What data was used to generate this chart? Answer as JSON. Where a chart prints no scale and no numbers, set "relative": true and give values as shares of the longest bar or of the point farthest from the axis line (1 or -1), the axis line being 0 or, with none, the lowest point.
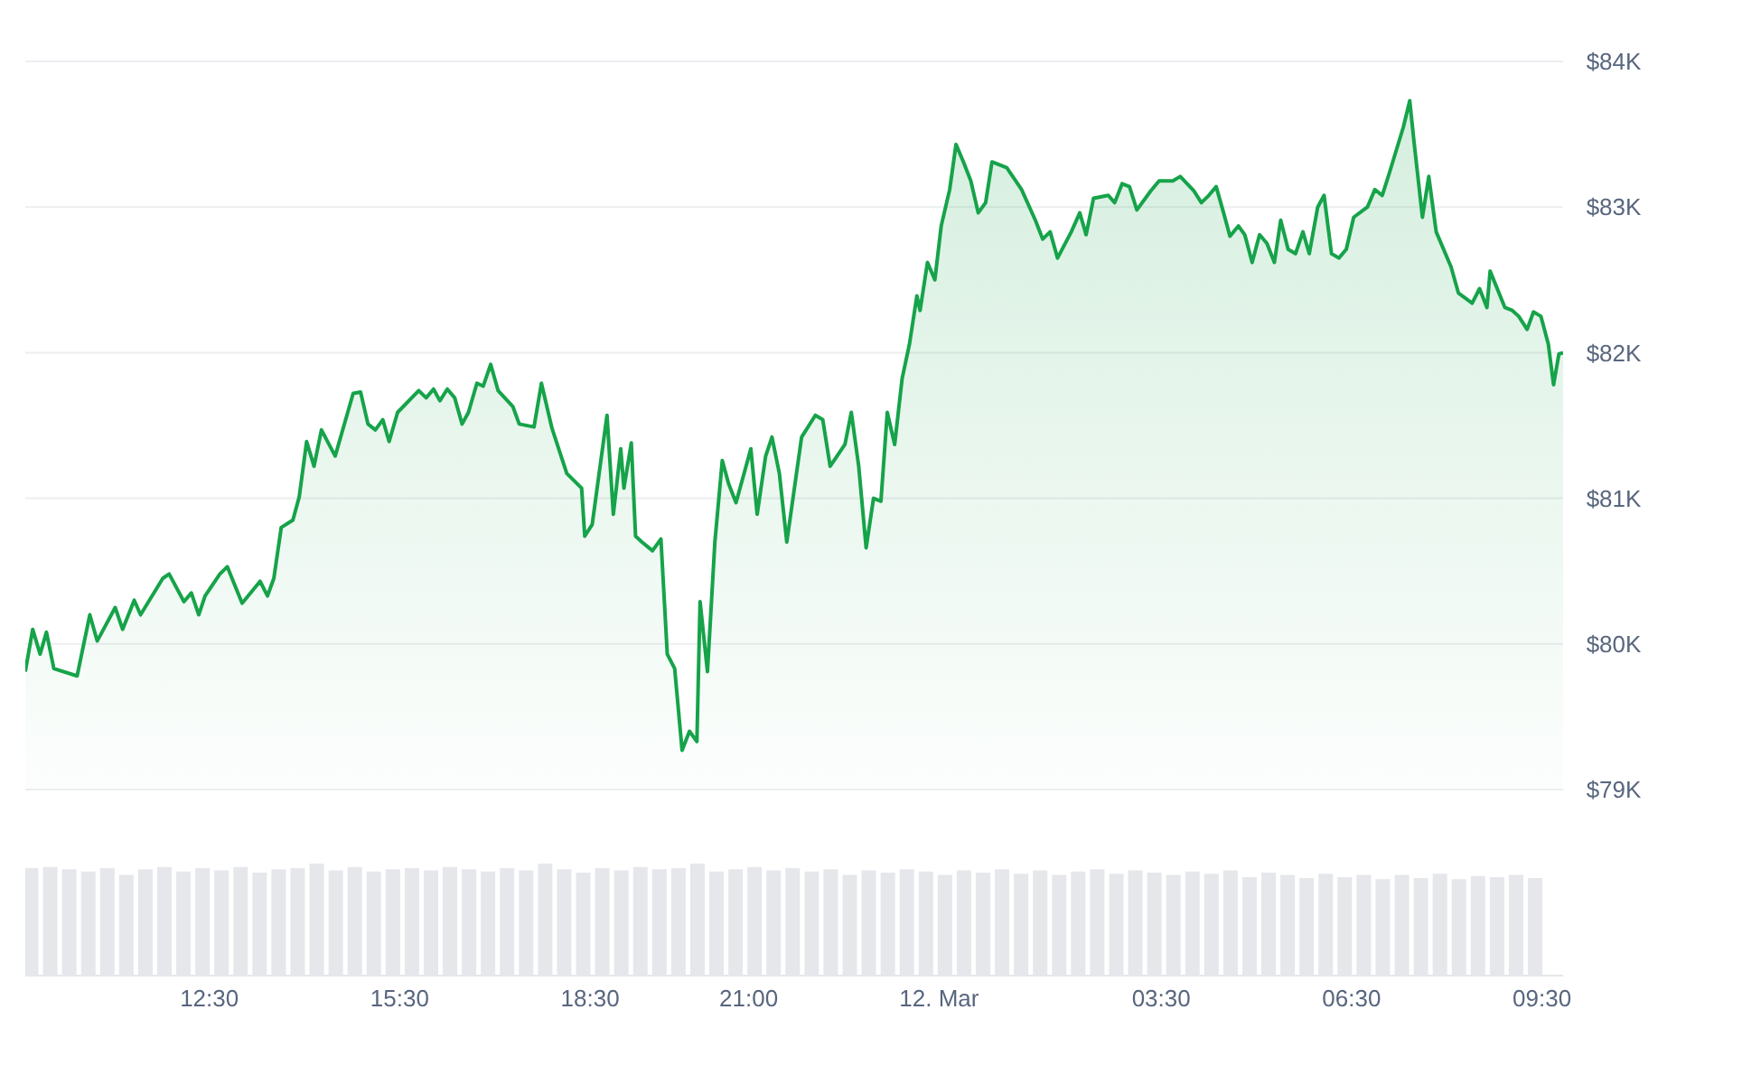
{
  "chart_data": [
    {
      "type": "area",
      "color": "#16a34a",
      "x": [
        "--03-11T09:36",
        "--03-11T09:43",
        "--03-11T09:50",
        "--03-11T09:56",
        "--03-11T10:03",
        "--03-11T10:25",
        "--03-11T10:37",
        "--03-11T10:44",
        "--03-11T11:01",
        "--03-11T11:08",
        "--03-11T11:19",
        "--03-11T11:25",
        "--03-11T11:46",
        "--03-11T11:52",
        "--03-11T12:06",
        "--03-11T12:13",
        "--03-11T12:20",
        "--03-11T12:26",
        "--03-11T12:40",
        "--03-11T12:47",
        "--03-11T13:01",
        "--03-11T13:18",
        "--03-11T13:25",
        "--03-11T13:31",
        "--03-11T13:38",
        "--03-11T13:49",
        "--03-11T13:55",
        "--03-11T14:02",
        "--03-11T14:09",
        "--03-11T14:16",
        "--03-11T14:29",
        "--03-11T14:46",
        "--03-11T14:53",
        "--03-11T15:00",
        "--03-11T15:07",
        "--03-11T15:14",
        "--03-11T15:20",
        "--03-11T15:28",
        "--03-11T15:48",
        "--03-11T15:55",
        "--03-11T16:02",
        "--03-11T16:08",
        "--03-11T16:15",
        "--03-11T16:22",
        "--03-11T16:29",
        "--03-11T16:35",
        "--03-11T16:43",
        "--03-11T16:49",
        "--03-11T16:56",
        "--03-11T17:03",
        "--03-11T17:17",
        "--03-11T17:23",
        "--03-11T17:37",
        "--03-11T17:44",
        "--03-11T17:54",
        "--03-11T18:08",
        "--03-11T18:22",
        "--03-11T18:25",
        "--03-11T18:32",
        "--03-11T18:46",
        "--03-11T18:52",
        "--03-11T18:59",
        "--03-11T19:02",
        "--03-11T19:09",
        "--03-11T19:13",
        "--03-11T19:19",
        "--03-11T19:29",
        "--03-11T19:37",
        "--03-11T19:43",
        "--03-11T19:50",
        "--03-11T19:57",
        "--03-11T20:04",
        "--03-11T20:11",
        "--03-11T20:14",
        "--03-11T20:21",
        "--03-11T20:28",
        "--03-11T20:35",
        "--03-11T20:41",
        "--03-11T20:48",
        "--03-11T21:02",
        "--03-11T21:08",
        "--03-11T21:16",
        "--03-11T21:22",
        "--03-11T21:29",
        "--03-11T21:36",
        "--03-11T21:50",
        "--03-11T22:03",
        "--03-11T22:10",
        "--03-11T22:17",
        "--03-11T22:31",
        "--03-11T22:37",
        "--03-11T22:44",
        "--03-11T22:51",
        "--03-11T22:58",
        "--03-11T23:05",
        "--03-11T23:11",
        "--03-11T23:18",
        "--03-11T23:25",
        "--03-11T23:32",
        "--03-11T23:39",
        "--03-11T23:42",
        "--03-11T23:49",
        "--03-11T23:56",
        "--03-12T00:02",
        "--03-12T00:10",
        "--03-12T00:16",
        "--03-12T00:23",
        "--03-12T00:30",
        "--03-12T00:37",
        "--03-12T00:44",
        "--03-12T00:50",
        "--03-12T01:04",
        "--03-12T01:18",
        "--03-12T01:31",
        "--03-12T01:38",
        "--03-12T01:45",
        "--03-12T01:52",
        "--03-12T02:05",
        "--03-12T02:13",
        "--03-12T02:19",
        "--03-12T02:26",
        "--03-12T02:40",
        "--03-12T02:46",
        "--03-12T02:53",
        "--03-12T03:00",
        "--03-12T03:07",
        "--03-12T03:20",
        "--03-12T03:28",
        "--03-12T03:41",
        "--03-12T03:48",
        "--03-12T04:01",
        "--03-12T04:08",
        "--03-12T04:15",
        "--03-12T04:22",
        "--03-12T04:29",
        "--03-12T04:35",
        "--03-12T04:43",
        "--03-12T04:49",
        "--03-12T04:56",
        "--03-12T05:03",
        "--03-12T05:10",
        "--03-12T05:17",
        "--03-12T05:23",
        "--03-12T05:30",
        "--03-12T05:37",
        "--03-12T05:44",
        "--03-12T05:50",
        "--03-12T05:58",
        "--03-12T06:04",
        "--03-12T06:11",
        "--03-12T06:18",
        "--03-12T06:25",
        "--03-12T06:32",
        "--03-12T06:45",
        "--03-12T06:52",
        "--03-12T06:59",
        "--03-12T07:06",
        "--03-12T07:19",
        "--03-12T07:25",
        "--03-12T07:29",
        "--03-12T07:37",
        "--03-12T07:43",
        "--03-12T07:50",
        "--03-12T08:04",
        "--03-12T08:11",
        "--03-12T08:24",
        "--03-12T08:31",
        "--03-12T08:38",
        "--03-12T08:41",
        "--03-12T08:55",
        "--03-12T09:02",
        "--03-12T09:08",
        "--03-12T09:16",
        "--03-12T09:22",
        "--03-12T09:29",
        "--03-12T09:36",
        "--03-12T09:41",
        "--03-12T09:46",
        "--03-12T09:50"
      ],
      "values": [
        79810,
        80100,
        79930,
        80080,
        79830,
        79780,
        80200,
        80020,
        80250,
        80100,
        80300,
        80200,
        80450,
        80480,
        80290,
        80350,
        80200,
        80330,
        80480,
        80530,
        80280,
        80430,
        80330,
        80450,
        80800,
        80850,
        81010,
        81390,
        81220,
        81470,
        81290,
        81720,
        81730,
        81510,
        81470,
        81540,
        81390,
        81590,
        81740,
        81690,
        81750,
        81670,
        81750,
        81690,
        81510,
        81590,
        81790,
        81770,
        81920,
        81740,
        81630,
        81510,
        81490,
        81790,
        81480,
        81170,
        81070,
        80740,
        80820,
        81570,
        80890,
        81340,
        81070,
        81380,
        80740,
        80700,
        80640,
        80720,
        79930,
        79830,
        79270,
        79400,
        79330,
        80290,
        79810,
        80700,
        81260,
        81100,
        80970,
        81340,
        80890,
        81290,
        81420,
        81170,
        80700,
        81420,
        81570,
        81540,
        81220,
        81370,
        81590,
        81220,
        80660,
        81000,
        80980,
        81590,
        81370,
        81820,
        82060,
        82390,
        82290,
        82620,
        82500,
        82870,
        83120,
        83430,
        83310,
        83180,
        82960,
        83030,
        83310,
        83270,
        83120,
        82910,
        82780,
        82830,
        82650,
        82830,
        82960,
        82810,
        83060,
        83080,
        83030,
        83160,
        83140,
        82980,
        83110,
        83180,
        83180,
        83210,
        83110,
        83030,
        83080,
        83140,
        82960,
        82800,
        82870,
        82810,
        82620,
        82810,
        82750,
        82620,
        82910,
        82710,
        82680,
        82830,
        82680,
        83000,
        83080,
        82680,
        82650,
        82710,
        82930,
        83000,
        83120,
        83080,
        83240,
        83550,
        83730,
        83450,
        82930,
        83210,
        82830,
        82590,
        82410,
        82340,
        82440,
        82310,
        82560,
        82310,
        82290,
        82250,
        82160,
        82280,
        82250,
        82060,
        81780,
        81990,
        82000
      ],
      "xlim": [
        "--03-11T09:36",
        "--03-12T09:50"
      ],
      "ylim": [
        79000,
        84000
      ],
      "yticks": [
        {
          "value": 79000,
          "label": "$79K"
        },
        {
          "value": 80000,
          "label": "$80K"
        },
        {
          "value": 81000,
          "label": "$81K"
        },
        {
          "value": 82000,
          "label": "$82K"
        },
        {
          "value": 83000,
          "label": "$83K"
        },
        {
          "value": 84000,
          "label": "$84K"
        }
      ],
      "grid": "y",
      "tick_labels": "y",
      "legend": false
    },
    {
      "type": "bar",
      "relative": true,
      "color": "#e5e7eb",
      "x": [
        "--03-11T09:42",
        "--03-11T10:00",
        "--03-11T10:18",
        "--03-11T10:36",
        "--03-11T10:54",
        "--03-11T11:12",
        "--03-11T11:30",
        "--03-11T11:48",
        "--03-11T12:06",
        "--03-11T12:24",
        "--03-11T12:42",
        "--03-11T13:00",
        "--03-11T13:18",
        "--03-11T13:36",
        "--03-11T13:54",
        "--03-11T14:12",
        "--03-11T14:30",
        "--03-11T14:48",
        "--03-11T15:06",
        "--03-11T15:24",
        "--03-11T15:42",
        "--03-11T16:00",
        "--03-11T16:18",
        "--03-11T16:36",
        "--03-11T16:54",
        "--03-11T17:12",
        "--03-11T17:30",
        "--03-11T17:48",
        "--03-11T18:06",
        "--03-11T18:24",
        "--03-11T18:42",
        "--03-11T19:00",
        "--03-11T19:18",
        "--03-11T19:36",
        "--03-11T19:54",
        "--03-11T20:12",
        "--03-11T20:30",
        "--03-11T20:48",
        "--03-11T21:06",
        "--03-11T21:24",
        "--03-11T21:42",
        "--03-11T22:00",
        "--03-11T22:18",
        "--03-11T22:36",
        "--03-11T22:54",
        "--03-11T23:12",
        "--03-11T23:30",
        "--03-11T23:48",
        "--03-12T00:06",
        "--03-12T00:24",
        "--03-12T00:42",
        "--03-12T01:00",
        "--03-12T01:18",
        "--03-12T01:36",
        "--03-12T01:54",
        "--03-12T02:12",
        "--03-12T02:30",
        "--03-12T02:48",
        "--03-12T03:06",
        "--03-12T03:24",
        "--03-12T03:42",
        "--03-12T04:00",
        "--03-12T04:18",
        "--03-12T04:36",
        "--03-12T04:54",
        "--03-12T05:12",
        "--03-12T05:30",
        "--03-12T05:48",
        "--03-12T06:06",
        "--03-12T06:24",
        "--03-12T06:42",
        "--03-12T07:00",
        "--03-12T07:18",
        "--03-12T07:36",
        "--03-12T07:54",
        "--03-12T08:12",
        "--03-12T08:30",
        "--03-12T08:48",
        "--03-12T09:06",
        "--03-12T09:24"
      ],
      "values": [
        0.96,
        0.97,
        0.95,
        0.93,
        0.96,
        0.9,
        0.95,
        0.97,
        0.93,
        0.96,
        0.94,
        0.97,
        0.92,
        0.95,
        0.96,
        1,
        0.94,
        0.97,
        0.93,
        0.95,
        0.96,
        0.94,
        0.97,
        0.95,
        0.93,
        0.96,
        0.94,
        1,
        0.95,
        0.92,
        0.96,
        0.94,
        0.97,
        0.95,
        0.96,
        1,
        0.93,
        0.95,
        0.97,
        0.94,
        0.96,
        0.93,
        0.95,
        0.9,
        0.94,
        0.92,
        0.95,
        0.93,
        0.9,
        0.94,
        0.92,
        0.95,
        0.91,
        0.94,
        0.9,
        0.93,
        0.95,
        0.91,
        0.94,
        0.92,
        0.9,
        0.93,
        0.91,
        0.94,
        0.88,
        0.92,
        0.9,
        0.87,
        0.91,
        0.88,
        0.9,
        0.86,
        0.9,
        0.87,
        0.91,
        0.86,
        0.89,
        0.88,
        0.9,
        0.87
      ],
      "xlim": [
        "--03-11T09:36",
        "--03-12T09:50"
      ],
      "xticks": [
        {
          "value": "--03-11T12:30",
          "label": "12:30"
        },
        {
          "value": "--03-11T15:30",
          "label": "15:30"
        },
        {
          "value": "--03-11T18:30",
          "label": "18:30"
        },
        {
          "value": "--03-11T21:00",
          "label": "21:00"
        },
        {
          "value": "--03-12T00:00",
          "label": "12. Mar"
        },
        {
          "value": "--03-12T03:30",
          "label": "03:30"
        },
        {
          "value": "--03-12T06:30",
          "label": "06:30"
        },
        {
          "value": "--03-12T09:30",
          "label": "09:30"
        }
      ],
      "grid": false,
      "tick_labels": "x",
      "legend": false
    }
  ]
}
